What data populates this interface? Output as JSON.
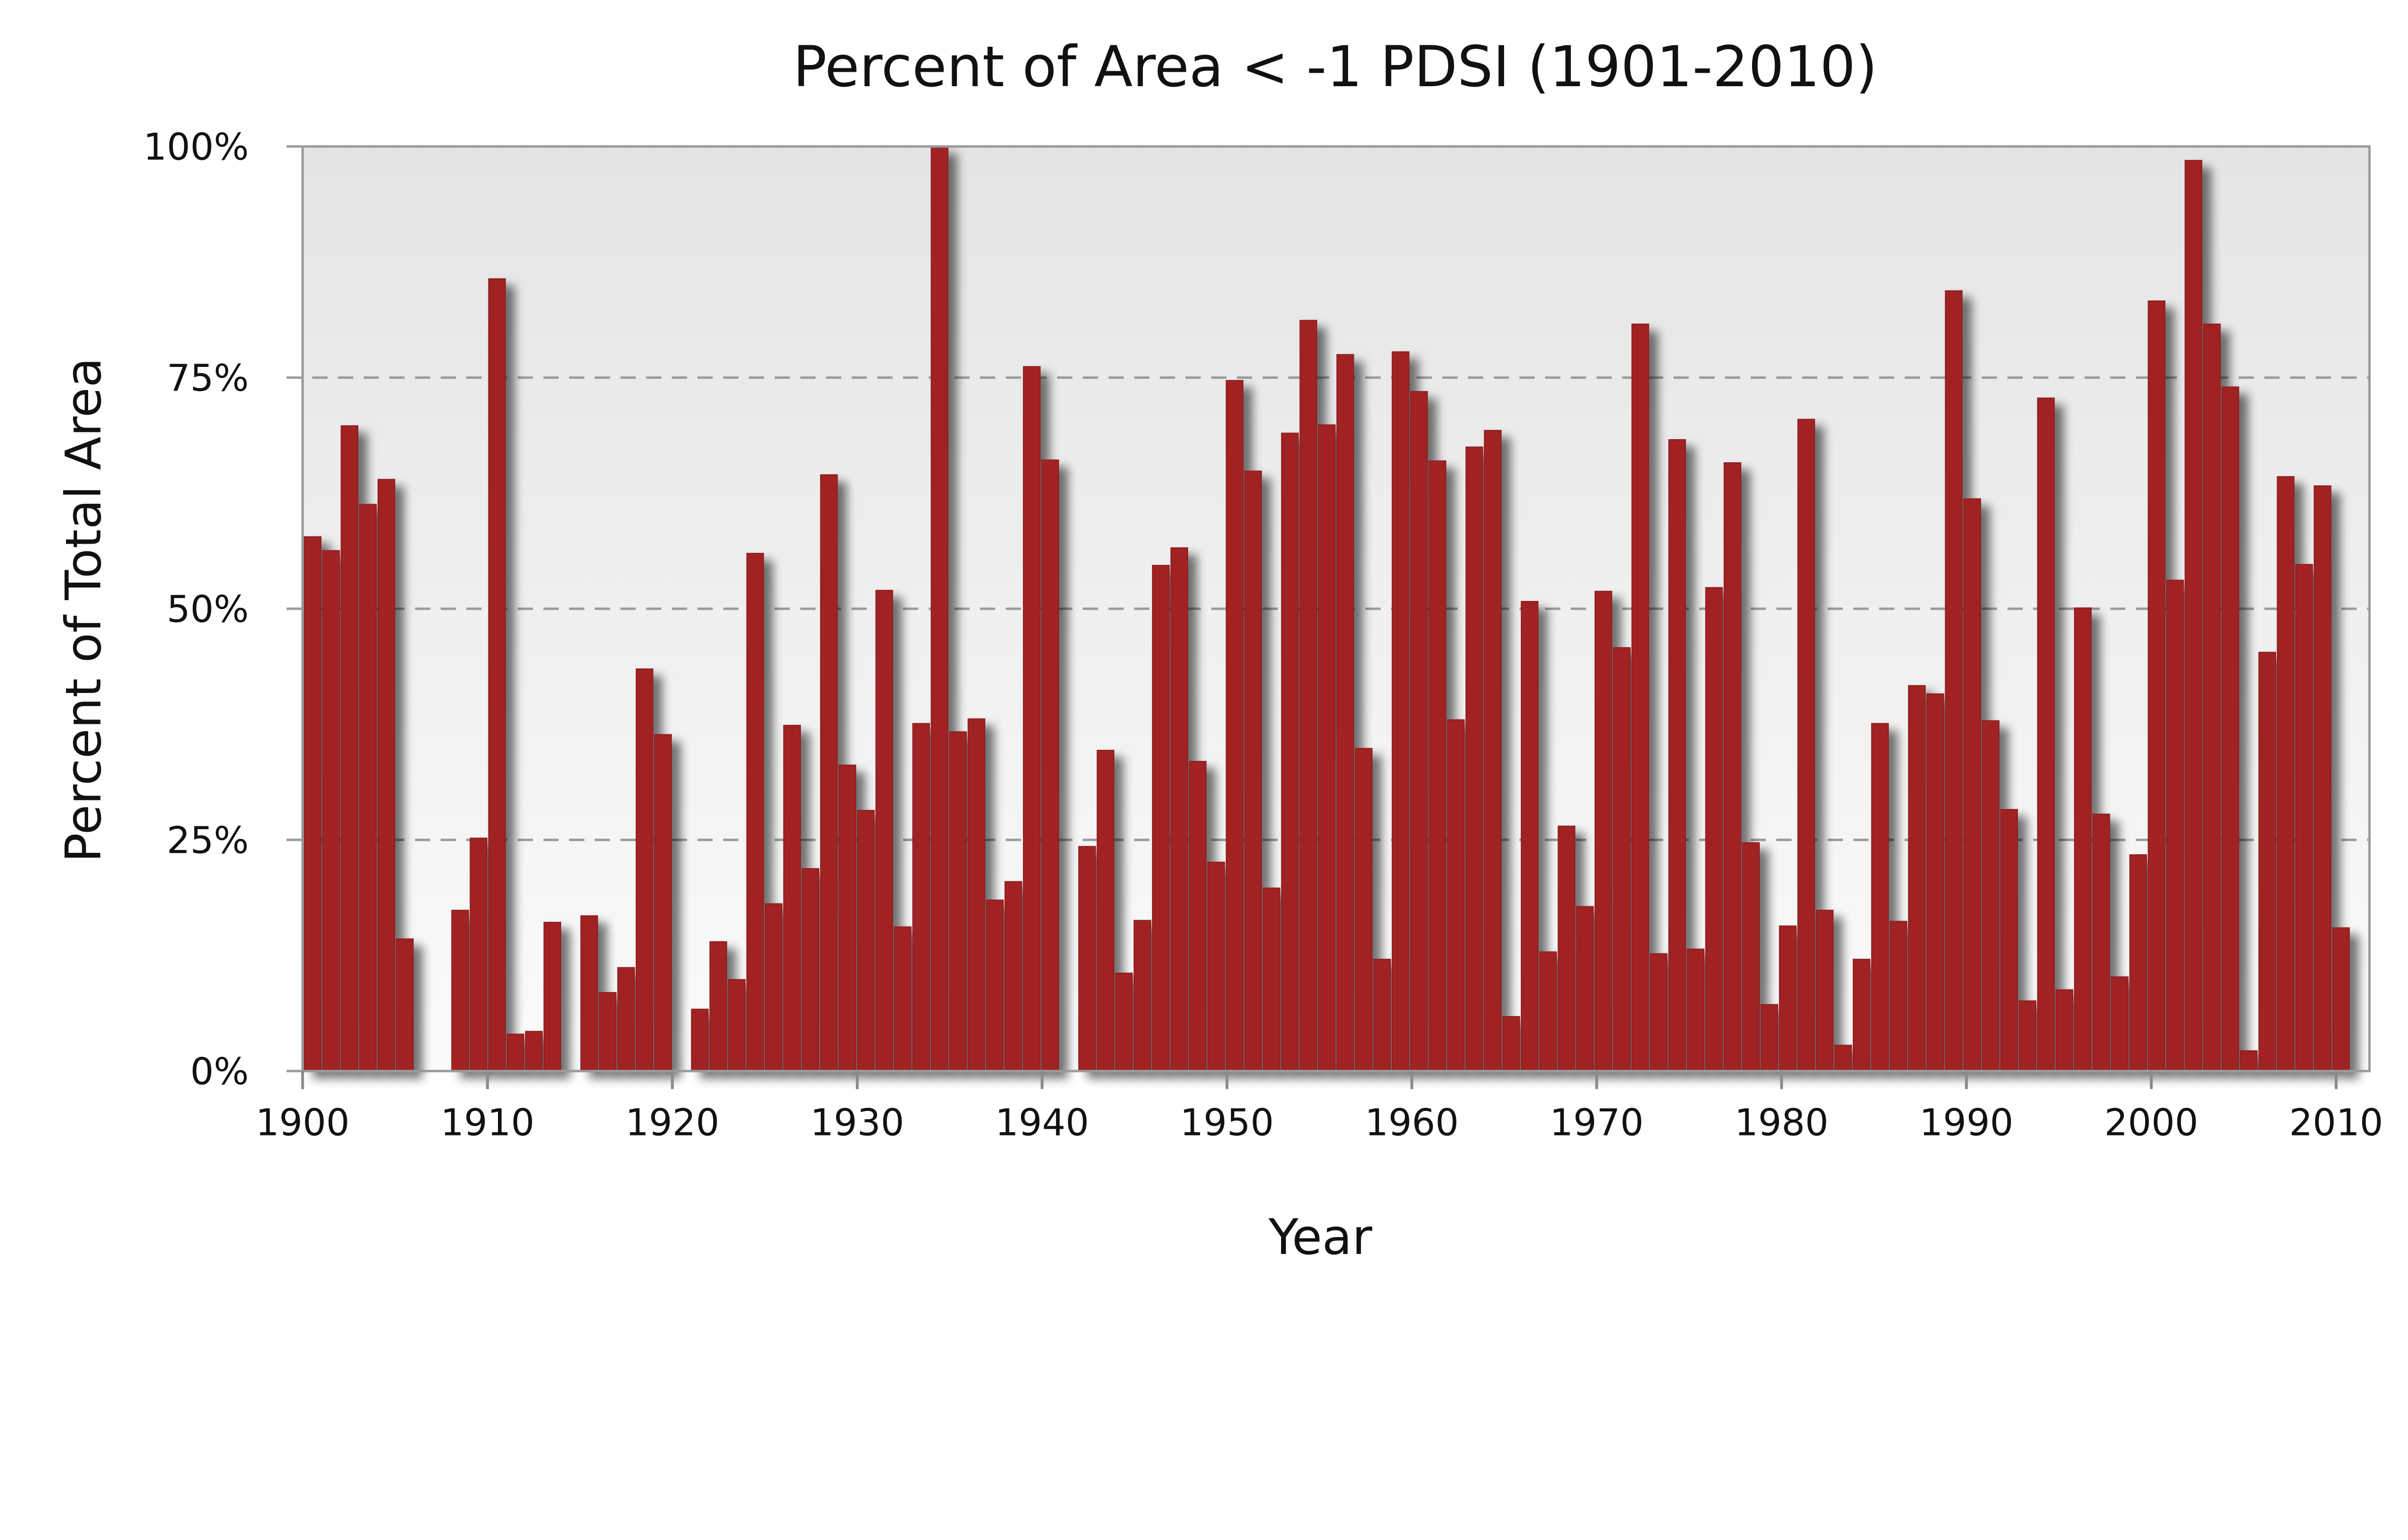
{
  "chart_data": {
    "type": "bar",
    "title": "Percent of Area < -1 PDSI (1901-2010)",
    "xlabel": "Year",
    "ylabel": "Percent of Total Area",
    "ylim": [
      0,
      100
    ],
    "xlim": [
      1900,
      2010
    ],
    "grid": "horizontal dashed",
    "legend": "none",
    "bar_color": "#a02222",
    "yticks": [
      {
        "value": 0,
        "label": "0%"
      },
      {
        "value": 25,
        "label": "25%"
      },
      {
        "value": 50,
        "label": "50%"
      },
      {
        "value": 75,
        "label": "75%"
      },
      {
        "value": 100,
        "label": "100%"
      }
    ],
    "xticks": [
      {
        "value": 1900,
        "label": "1900"
      },
      {
        "value": 1910,
        "label": "1910"
      },
      {
        "value": 1920,
        "label": "1920"
      },
      {
        "value": 1930,
        "label": "1930"
      },
      {
        "value": 1940,
        "label": "1940"
      },
      {
        "value": 1950,
        "label": "1950"
      },
      {
        "value": 1960,
        "label": "1960"
      },
      {
        "value": 1970,
        "label": "1970"
      },
      {
        "value": 1980,
        "label": "1980"
      },
      {
        "value": 1990,
        "label": "1990"
      },
      {
        "value": 2000,
        "label": "2000"
      },
      {
        "value": 2010,
        "label": "2010"
      }
    ],
    "x": [
      1900,
      1901,
      1902,
      1903,
      1904,
      1905,
      1906,
      1907,
      1908,
      1909,
      1910,
      1911,
      1912,
      1913,
      1914,
      1915,
      1916,
      1917,
      1918,
      1919,
      1920,
      1921,
      1922,
      1923,
      1924,
      1925,
      1926,
      1927,
      1928,
      1929,
      1930,
      1931,
      1932,
      1933,
      1934,
      1935,
      1936,
      1937,
      1938,
      1939,
      1940,
      1941,
      1942,
      1943,
      1944,
      1945,
      1946,
      1947,
      1948,
      1949,
      1950,
      1951,
      1952,
      1953,
      1954,
      1955,
      1956,
      1957,
      1958,
      1959,
      1960,
      1961,
      1962,
      1963,
      1964,
      1965,
      1966,
      1967,
      1968,
      1969,
      1970,
      1971,
      1972,
      1973,
      1974,
      1975,
      1976,
      1977,
      1978,
      1979,
      1980,
      1981,
      1982,
      1983,
      1984,
      1985,
      1986,
      1987,
      1988,
      1989,
      1990,
      1991,
      1992,
      1993,
      1994,
      1995,
      1996,
      1997,
      1998,
      1999,
      2000,
      2001,
      2002,
      2003,
      2004,
      2005,
      2006,
      2007,
      2008,
      2009,
      2010
    ],
    "values": [
      57.8,
      56.3,
      69.8,
      61.3,
      64.0,
      14.3,
      0,
      0,
      17.4,
      25.2,
      85.7,
      4.0,
      4.3,
      16.1,
      0,
      16.8,
      8.5,
      11.2,
      43.5,
      36.4,
      0,
      6.7,
      14.0,
      9.9,
      56.0,
      18.1,
      37.4,
      21.9,
      64.5,
      33.1,
      28.2,
      52.0,
      15.6,
      37.6,
      100,
      36.7,
      38.1,
      18.5,
      20.5,
      76.2,
      66.1,
      0,
      24.3,
      34.7,
      10.6,
      16.3,
      54.7,
      56.6,
      33.5,
      22.6,
      74.7,
      64.9,
      19.8,
      69.0,
      81.2,
      69.9,
      77.5,
      34.9,
      12.1,
      77.8,
      73.5,
      66.0,
      38.0,
      67.5,
      69.3,
      5.9,
      50.8,
      12.9,
      26.5,
      17.8,
      51.9,
      45.8,
      80.8,
      12.7,
      68.3,
      13.2,
      52.3,
      65.8,
      24.7,
      7.2,
      15.7,
      70.5,
      17.4,
      2.8,
      12.1,
      37.6,
      16.2,
      41.7,
      40.8,
      84.4,
      61.9,
      37.9,
      28.3,
      7.6,
      72.8,
      8.8,
      50.1,
      27.8,
      10.2,
      23.4,
      83.3,
      53.1,
      98.5,
      80.8,
      74.0,
      2.2,
      45.3,
      64.3,
      54.8,
      63.3,
      15.5
    ]
  }
}
